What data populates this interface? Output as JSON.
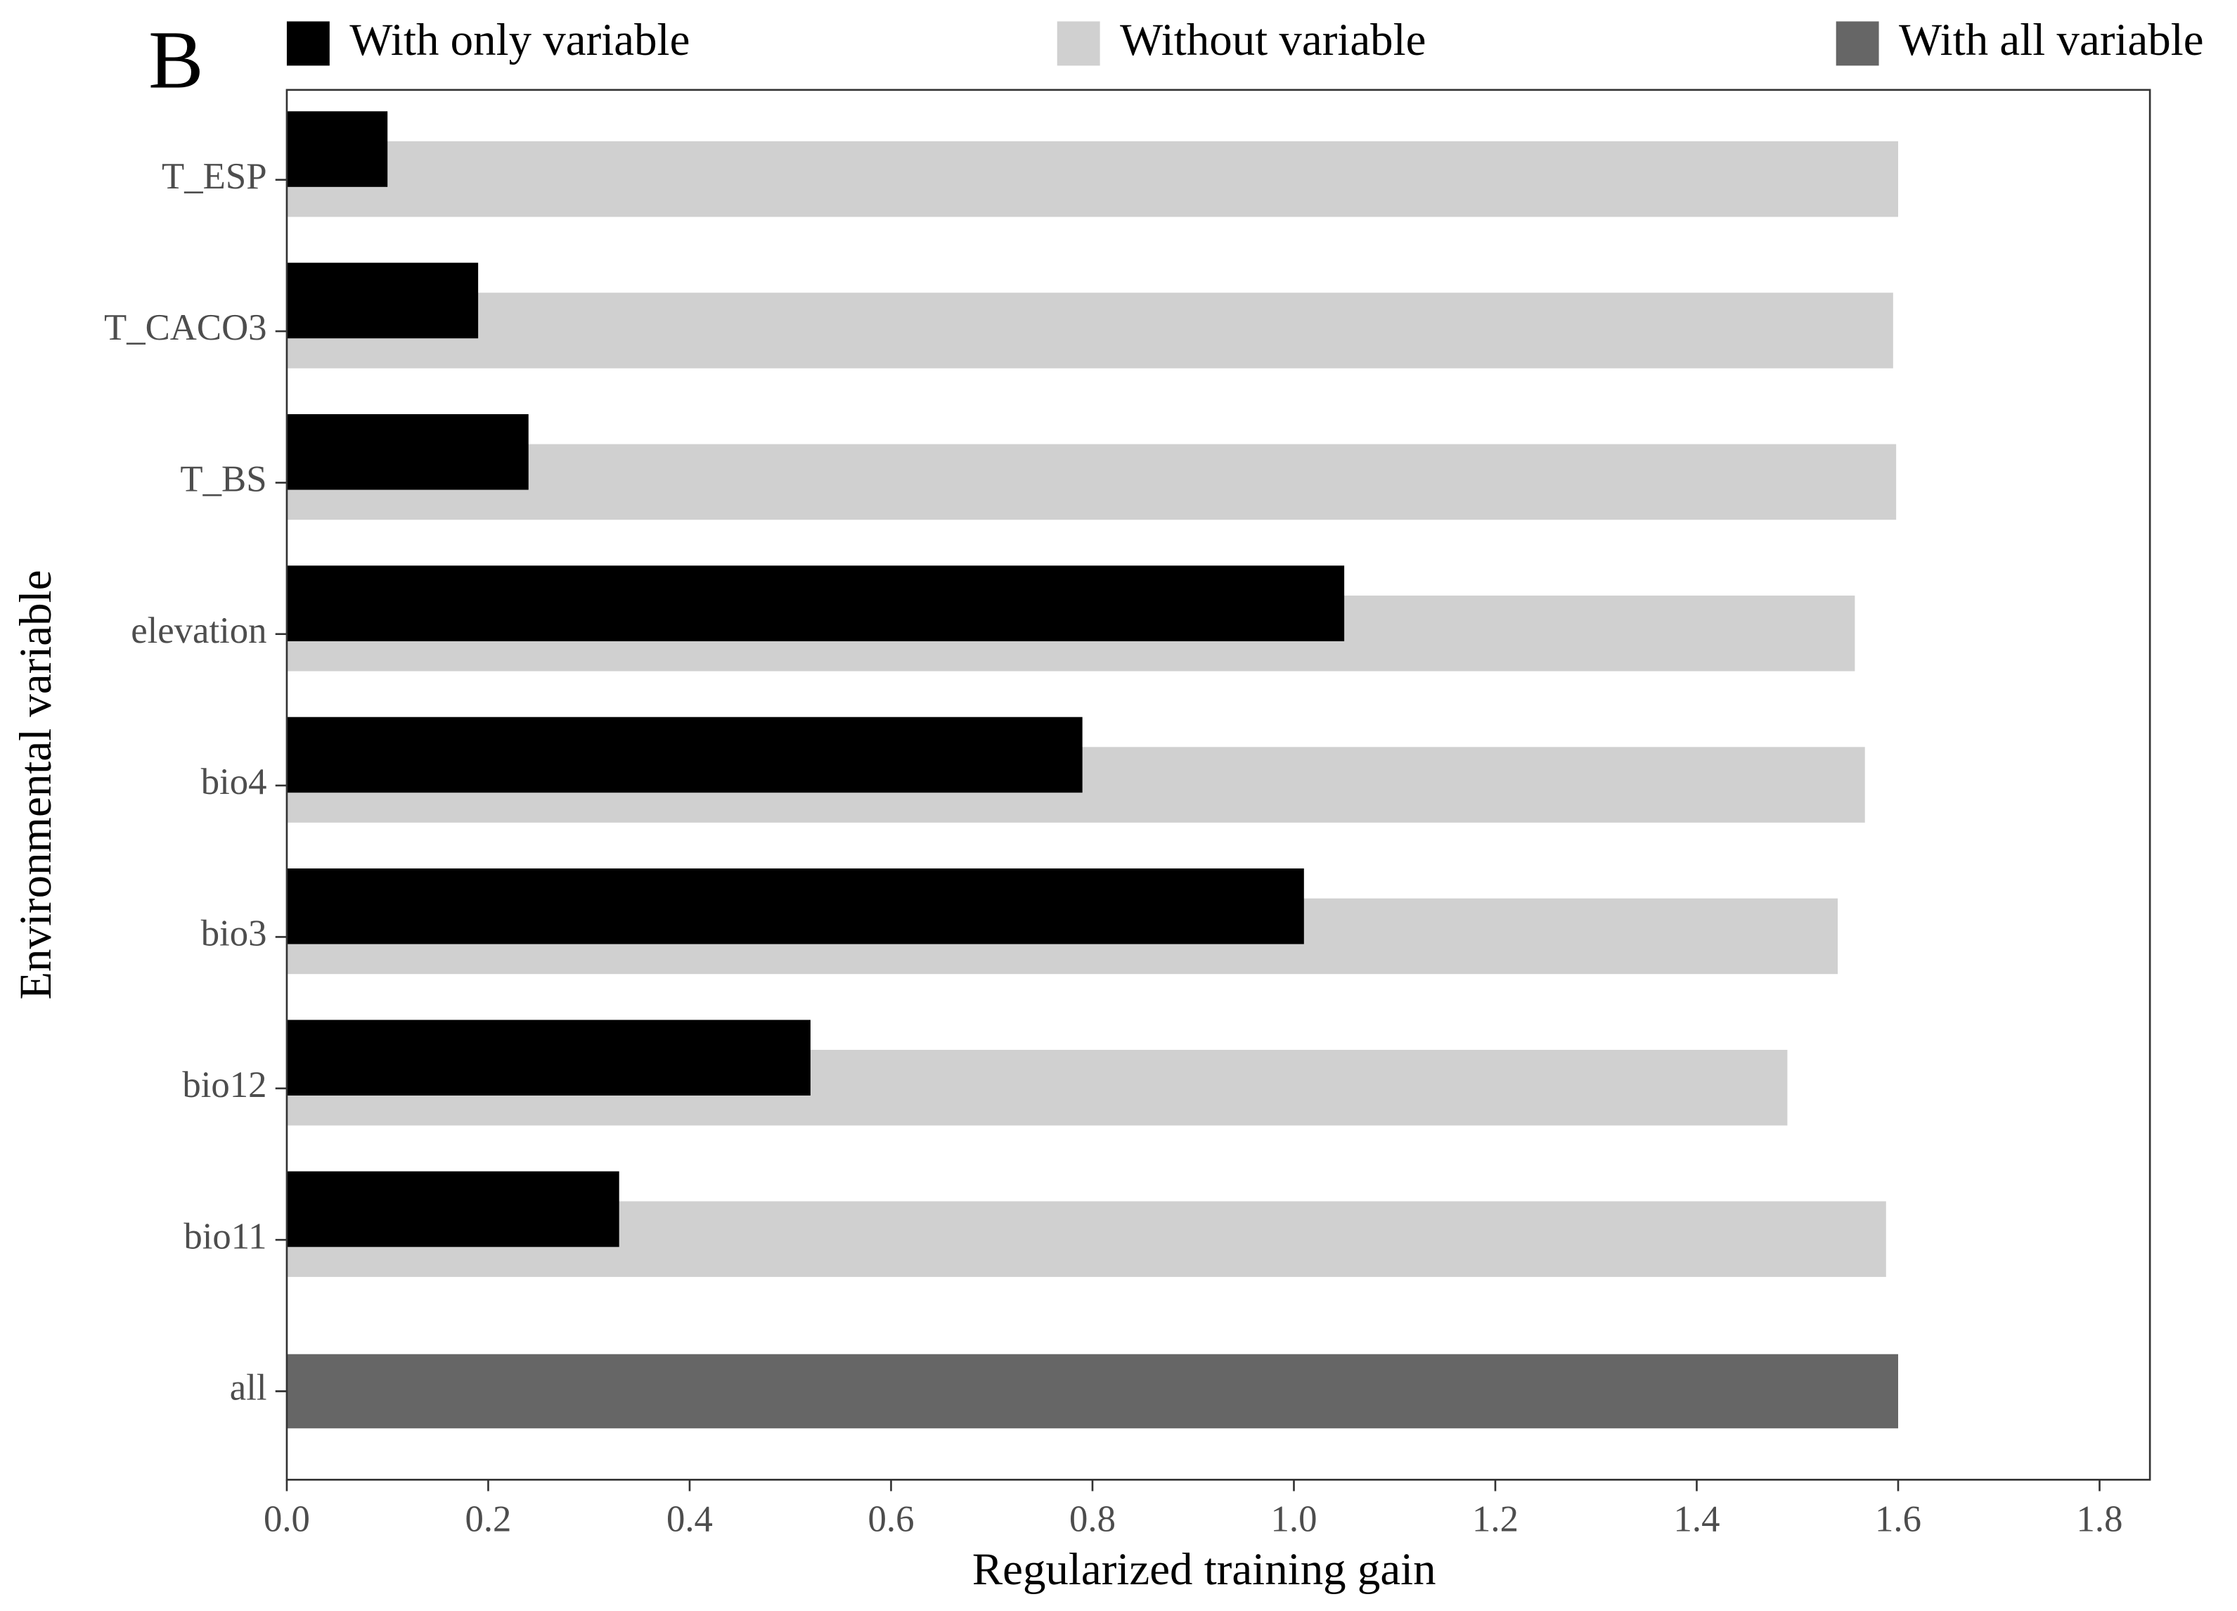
{
  "chart_data": {
    "type": "bar",
    "orientation": "horizontal",
    "title": "B",
    "x_label": "Regularized training gain",
    "y_label": "Environmental variable",
    "categories": [
      "T_ESP",
      "T_CACO3",
      "T_BS",
      "elevation",
      "bio4",
      "bio3",
      "bio12",
      "bio11",
      "all"
    ],
    "series": [
      {
        "name": "With only variable",
        "color": "#000000",
        "values": [
          0.1,
          0.19,
          0.24,
          1.05,
          0.79,
          1.01,
          0.52,
          0.33,
          null
        ]
      },
      {
        "name": "Without variable",
        "color": "#d0d0d0",
        "values": [
          1.6,
          1.595,
          1.598,
          1.557,
          1.567,
          1.54,
          1.49,
          1.588,
          null
        ]
      },
      {
        "name": "With all variable",
        "color": "#666666",
        "values": [
          null,
          null,
          null,
          null,
          null,
          null,
          null,
          null,
          1.6
        ]
      }
    ],
    "xlim": [
      0,
      1.85
    ],
    "xticks": [
      {
        "value": 0,
        "label": "0.0"
      },
      0.2,
      0.4,
      0.6,
      0.8,
      {
        "value": 1,
        "label": "1.0"
      },
      1.2,
      1.4,
      1.6,
      1.8
    ],
    "grid": false,
    "legend": "top"
  }
}
